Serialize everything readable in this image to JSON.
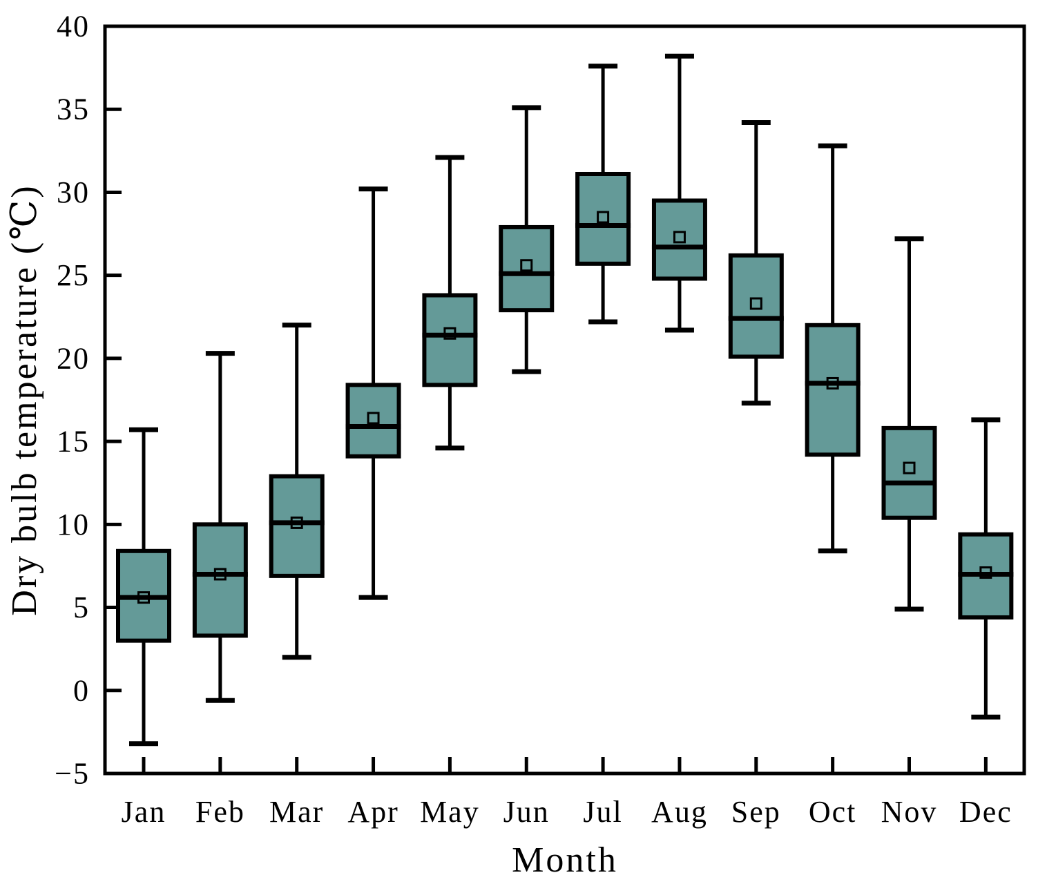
{
  "figure": {
    "background": "#ffffff"
  },
  "chart_data": {
    "type": "boxplot",
    "title": "",
    "xlabel": "Month",
    "ylabel": "Dry bulb temperature (℃)",
    "ylim": [
      -5,
      40
    ],
    "yticks": [
      -5,
      0,
      5,
      10,
      15,
      20,
      25,
      30,
      35,
      40
    ],
    "ytick_labels": [
      "−5",
      "0",
      "5",
      "10",
      "15",
      "20",
      "25",
      "30",
      "35",
      "40"
    ],
    "grid": false,
    "legend": "none",
    "box_fill": "#649a98",
    "line_color": "#000000",
    "mean_marker": "open-square",
    "categories": [
      "Jan",
      "Feb",
      "Mar",
      "Apr",
      "May",
      "Jun",
      "Jul",
      "Aug",
      "Sep",
      "Oct",
      "Nov",
      "Dec"
    ],
    "boxes": [
      {
        "label": "Jan",
        "whisker_min": -3.2,
        "q1": 3.0,
        "median": 5.6,
        "mean": 5.6,
        "q3": 8.4,
        "whisker_max": 15.7
      },
      {
        "label": "Feb",
        "whisker_min": -0.6,
        "q1": 3.3,
        "median": 7.0,
        "mean": 7.0,
        "q3": 10.0,
        "whisker_max": 20.3
      },
      {
        "label": "Mar",
        "whisker_min": 2.0,
        "q1": 6.9,
        "median": 10.1,
        "mean": 10.1,
        "q3": 12.9,
        "whisker_max": 22.0
      },
      {
        "label": "Apr",
        "whisker_min": 5.6,
        "q1": 14.1,
        "median": 15.9,
        "mean": 16.4,
        "q3": 18.4,
        "whisker_max": 30.2
      },
      {
        "label": "May",
        "whisker_min": 14.6,
        "q1": 18.4,
        "median": 21.4,
        "mean": 21.5,
        "q3": 23.8,
        "whisker_max": 32.1
      },
      {
        "label": "Jun",
        "whisker_min": 19.2,
        "q1": 22.9,
        "median": 25.1,
        "mean": 25.6,
        "q3": 27.9,
        "whisker_max": 35.1
      },
      {
        "label": "Jul",
        "whisker_min": 22.2,
        "q1": 25.7,
        "median": 28.0,
        "mean": 28.5,
        "q3": 31.1,
        "whisker_max": 37.6
      },
      {
        "label": "Aug",
        "whisker_min": 21.7,
        "q1": 24.8,
        "median": 26.7,
        "mean": 27.3,
        "q3": 29.5,
        "whisker_max": 38.2
      },
      {
        "label": "Sep",
        "whisker_min": 17.3,
        "q1": 20.1,
        "median": 22.4,
        "mean": 23.3,
        "q3": 26.2,
        "whisker_max": 34.2
      },
      {
        "label": "Oct",
        "whisker_min": 8.4,
        "q1": 14.2,
        "median": 18.5,
        "mean": 18.5,
        "q3": 22.0,
        "whisker_max": 32.8
      },
      {
        "label": "Nov",
        "whisker_min": 4.9,
        "q1": 10.4,
        "median": 12.5,
        "mean": 13.4,
        "q3": 15.8,
        "whisker_max": 27.2
      },
      {
        "label": "Dec",
        "whisker_min": -1.6,
        "q1": 4.4,
        "median": 7.0,
        "mean": 7.1,
        "q3": 9.4,
        "whisker_max": 16.3
      }
    ]
  }
}
